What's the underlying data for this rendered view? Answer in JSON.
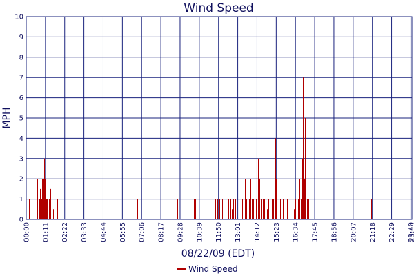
{
  "chart_data": {
    "type": "line",
    "title": "Wind Speed",
    "xlabel": "08/22/09 (EDT)",
    "ylabel": "MPH",
    "ylim": [
      0,
      10
    ],
    "yticks": [
      "0",
      "1",
      "2",
      "3",
      "4",
      "5",
      "6",
      "7",
      "8",
      "9",
      "10"
    ],
    "xrange": [
      "00:00",
      "23:44"
    ],
    "xticks": [
      "00:00",
      "01:11",
      "02:22",
      "03:33",
      "04:44",
      "05:55",
      "07:06",
      "08:17",
      "09:28",
      "10:39",
      "11:50",
      "13:01",
      "14:12",
      "15:23",
      "16:34",
      "17:45",
      "18:56",
      "20:07",
      "21:18",
      "22:29",
      "23:40",
      "23:44"
    ],
    "grid": true,
    "legend": "bottom-center",
    "colors": {
      "series": "#b00000",
      "grid": "#1a237e",
      "text": "#10105e"
    },
    "series": [
      {
        "name": "Wind Speed",
        "points": [
          [
            "00:10",
            1
          ],
          [
            "00:38",
            2
          ],
          [
            "00:42",
            2
          ],
          [
            "00:49",
            1
          ],
          [
            "00:52",
            1.5
          ],
          [
            "00:55",
            1
          ],
          [
            "00:58",
            2
          ],
          [
            "01:00",
            1
          ],
          [
            "01:04",
            2
          ],
          [
            "01:07",
            3
          ],
          [
            "01:10",
            2
          ],
          [
            "01:13",
            1
          ],
          [
            "01:17",
            1
          ],
          [
            "01:20",
            0.5
          ],
          [
            "01:25",
            1
          ],
          [
            "01:29",
            1.5
          ],
          [
            "01:34",
            1
          ],
          [
            "01:40",
            0.5
          ],
          [
            "01:45",
            1
          ],
          [
            "01:51",
            2
          ],
          [
            "01:55",
            1
          ],
          [
            "06:51",
            1
          ],
          [
            "06:56",
            0.5
          ],
          [
            "09:08",
            1
          ],
          [
            "09:18",
            1
          ],
          [
            "09:23",
            1
          ],
          [
            "10:20",
            1
          ],
          [
            "10:25",
            1
          ],
          [
            "11:38",
            1
          ],
          [
            "11:46",
            1
          ],
          [
            "11:53",
            1
          ],
          [
            "12:03",
            1
          ],
          [
            "12:23",
            1
          ],
          [
            "12:27",
            1
          ],
          [
            "12:33",
            1
          ],
          [
            "12:38",
            0.5
          ],
          [
            "12:43",
            1
          ],
          [
            "12:53",
            1
          ],
          [
            "13:13",
            2
          ],
          [
            "13:18",
            1
          ],
          [
            "13:23",
            2
          ],
          [
            "13:27",
            2
          ],
          [
            "13:32",
            1
          ],
          [
            "13:37",
            1
          ],
          [
            "13:43",
            1
          ],
          [
            "13:49",
            2
          ],
          [
            "13:54",
            1
          ],
          [
            "13:58",
            1
          ],
          [
            "14:03",
            0.5
          ],
          [
            "14:08",
            1
          ],
          [
            "14:12",
            2
          ],
          [
            "14:16",
            3
          ],
          [
            "14:20",
            2
          ],
          [
            "14:25",
            1
          ],
          [
            "14:33",
            1
          ],
          [
            "14:38",
            1
          ],
          [
            "14:43",
            2
          ],
          [
            "14:48",
            0.5
          ],
          [
            "14:53",
            1
          ],
          [
            "14:58",
            2
          ],
          [
            "15:08",
            1
          ],
          [
            "15:13",
            1
          ],
          [
            "15:19",
            4
          ],
          [
            "15:23",
            2
          ],
          [
            "15:33",
            1
          ],
          [
            "15:38",
            1
          ],
          [
            "15:43",
            1
          ],
          [
            "15:48",
            1
          ],
          [
            "15:58",
            2
          ],
          [
            "16:03",
            1
          ],
          [
            "16:28",
            0.5
          ],
          [
            "16:33",
            1
          ],
          [
            "16:38",
            1
          ],
          [
            "16:44",
            1
          ],
          [
            "16:49",
            2
          ],
          [
            "16:53",
            1
          ],
          [
            "16:58",
            3
          ],
          [
            "17:01",
            7
          ],
          [
            "17:03",
            4
          ],
          [
            "17:06",
            2
          ],
          [
            "17:09",
            5
          ],
          [
            "17:12",
            3
          ],
          [
            "17:16",
            1
          ],
          [
            "17:22",
            1
          ],
          [
            "17:26",
            2
          ],
          [
            "19:48",
            1
          ],
          [
            "19:58",
            1
          ],
          [
            "21:14",
            1
          ]
        ]
      }
    ]
  }
}
